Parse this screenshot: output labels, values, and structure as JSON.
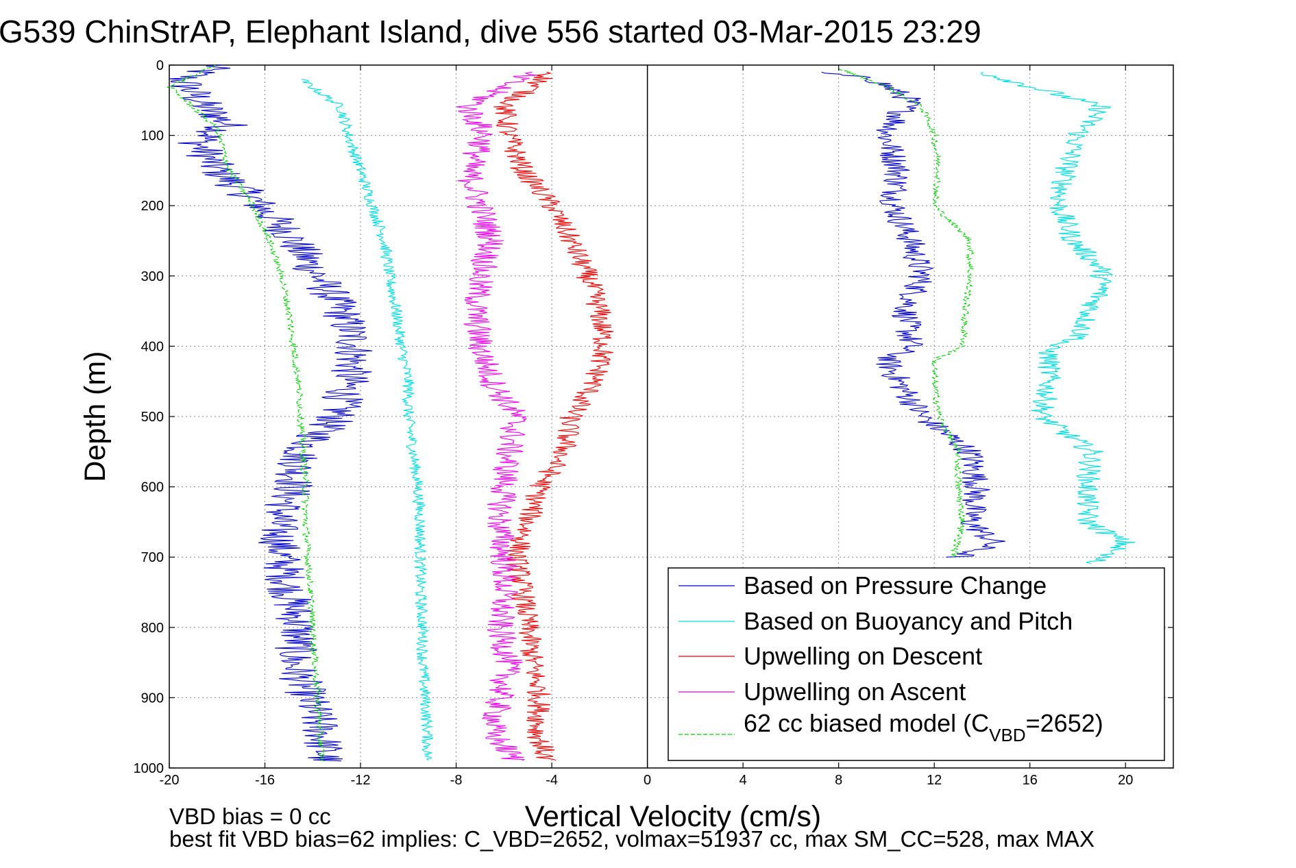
{
  "chart_data": {
    "type": "line",
    "title": "G539 ChinStrAP, Elephant Island, dive 556 started 03-Mar-2015 23:29",
    "xlabel": "Vertical Velocity (cm/s)",
    "ylabel": "Depth (m)",
    "xlim": [
      -20,
      22
    ],
    "ylim": [
      0,
      1000
    ],
    "y_reversed": true,
    "grid": true,
    "x_ticks": [
      -20,
      -16,
      -12,
      -8,
      -4,
      0,
      4,
      8,
      12,
      16,
      20
    ],
    "y_ticks": [
      0,
      100,
      200,
      300,
      400,
      500,
      600,
      700,
      800,
      900,
      1000
    ],
    "x_tick_labels": [
      "-20",
      "-16",
      "-12",
      "-8",
      "-4",
      "0",
      "4",
      "8",
      "12",
      "16",
      "20"
    ],
    "y_tick_labels": [
      "0",
      "100",
      "200",
      "300",
      "400",
      "500",
      "600",
      "700",
      "800",
      "900",
      "1000"
    ],
    "legend_position": "bottom-right",
    "legend": [
      "Based on Pressure Change",
      "Based on Buoyancy and Pitch",
      "Upwelling on Descent",
      "Upwelling on Ascent"
    ],
    "legend_model": {
      "prefix": "62 cc biased model (C",
      "subscript": "VBD",
      "suffix": "=2652)"
    },
    "footer_line1": "VBD bias = 0 cc",
    "footer_line2": "best fit VBD bias=62 implies: C_VBD=2652, volmax=51937 cc, max SM_CC=528, max MAX",
    "series": [
      {
        "color": "#0000cc",
        "style": "solid",
        "noise": 0.9,
        "points": [
          [
            -18,
            0
          ],
          [
            -19.5,
            20
          ],
          [
            -18.5,
            60
          ],
          [
            -17.5,
            85
          ],
          [
            -18.8,
            110
          ],
          [
            -18,
            150
          ],
          [
            -16.5,
            190
          ],
          [
            -15,
            240
          ],
          [
            -13.8,
            300
          ],
          [
            -12.8,
            350
          ],
          [
            -12.2,
            400
          ],
          [
            -12.5,
            450
          ],
          [
            -13,
            500
          ],
          [
            -14.5,
            550
          ],
          [
            -14.8,
            600
          ],
          [
            -15.5,
            650
          ],
          [
            -15.3,
            700
          ],
          [
            -15,
            750
          ],
          [
            -14.6,
            800
          ],
          [
            -14.8,
            850
          ],
          [
            -14.2,
            900
          ],
          [
            -13.6,
            950
          ],
          [
            -13.5,
            990
          ]
        ]
      },
      {
        "color": "#0000cc",
        "style": "solid",
        "noise": 0.6,
        "points": [
          [
            7,
            10
          ],
          [
            9.5,
            20
          ],
          [
            11,
            50
          ],
          [
            10,
            100
          ],
          [
            10.5,
            150
          ],
          [
            10.3,
            200
          ],
          [
            11,
            250
          ],
          [
            11.5,
            300
          ],
          [
            10.8,
            350
          ],
          [
            11,
            400
          ],
          [
            10,
            420
          ],
          [
            10.5,
            450
          ],
          [
            11.5,
            500
          ],
          [
            13.5,
            550
          ],
          [
            13.8,
            600
          ],
          [
            13.5,
            650
          ],
          [
            14.5,
            680
          ],
          [
            13,
            700
          ]
        ]
      },
      {
        "color": "#00dddd",
        "style": "solid",
        "noise": 0.25,
        "points": [
          [
            -14.5,
            20
          ],
          [
            -12.8,
            60
          ],
          [
            -12.5,
            100
          ],
          [
            -12,
            150
          ],
          [
            -11.5,
            200
          ],
          [
            -11,
            250
          ],
          [
            -10.8,
            300
          ],
          [
            -10.5,
            350
          ],
          [
            -10.3,
            400
          ],
          [
            -10,
            450
          ],
          [
            -10,
            500
          ],
          [
            -9.8,
            550
          ],
          [
            -9.6,
            600
          ],
          [
            -9.5,
            650
          ],
          [
            -9.5,
            700
          ],
          [
            -9.5,
            750
          ],
          [
            -9.4,
            800
          ],
          [
            -9.4,
            850
          ],
          [
            -9.3,
            900
          ],
          [
            -9.2,
            950
          ],
          [
            -9.2,
            990
          ]
        ]
      },
      {
        "color": "#00dddd",
        "style": "solid",
        "noise": 0.5,
        "points": [
          [
            14,
            10
          ],
          [
            16,
            30
          ],
          [
            19,
            60
          ],
          [
            18,
            100
          ],
          [
            17.5,
            150
          ],
          [
            17.2,
            200
          ],
          [
            17.8,
            250
          ],
          [
            19,
            290
          ],
          [
            19,
            320
          ],
          [
            18.5,
            350
          ],
          [
            18,
            390
          ],
          [
            16.8,
            400
          ],
          [
            16.8,
            450
          ],
          [
            16.5,
            500
          ],
          [
            18.6,
            550
          ],
          [
            18.4,
            600
          ],
          [
            18.4,
            650
          ],
          [
            20,
            680
          ],
          [
            18.5,
            710
          ]
        ]
      },
      {
        "color": "#ee0000",
        "style": "solid",
        "noise": 0.5,
        "points": [
          [
            -4,
            10
          ],
          [
            -6,
            60
          ],
          [
            -5.8,
            100
          ],
          [
            -5.2,
            150
          ],
          [
            -4,
            200
          ],
          [
            -3.2,
            250
          ],
          [
            -2.5,
            300
          ],
          [
            -2,
            350
          ],
          [
            -1.8,
            400
          ],
          [
            -2.2,
            450
          ],
          [
            -3.2,
            500
          ],
          [
            -3.5,
            550
          ],
          [
            -4.5,
            600
          ],
          [
            -5,
            650
          ],
          [
            -5.5,
            700
          ],
          [
            -5.2,
            750
          ],
          [
            -5,
            800
          ],
          [
            -4.8,
            850
          ],
          [
            -4.5,
            900
          ],
          [
            -4.6,
            950
          ],
          [
            -4.2,
            990
          ]
        ]
      },
      {
        "color": "#ee00ee",
        "style": "solid",
        "noise": 0.6,
        "points": [
          [
            -5,
            10
          ],
          [
            -7.5,
            60
          ],
          [
            -6.8,
            100
          ],
          [
            -7.5,
            150
          ],
          [
            -7,
            200
          ],
          [
            -6.5,
            250
          ],
          [
            -7,
            300
          ],
          [
            -7.2,
            350
          ],
          [
            -7,
            400
          ],
          [
            -6.5,
            450
          ],
          [
            -5.5,
            500
          ],
          [
            -5.8,
            550
          ],
          [
            -6,
            600
          ],
          [
            -6.2,
            650
          ],
          [
            -6,
            700
          ],
          [
            -6,
            750
          ],
          [
            -6.2,
            800
          ],
          [
            -5.8,
            850
          ],
          [
            -6.2,
            900
          ],
          [
            -6.5,
            950
          ],
          [
            -5.5,
            990
          ]
        ]
      },
      {
        "color": "#00cc00",
        "style": "dashed",
        "noise": 0.15,
        "points": [
          [
            -18,
            0
          ],
          [
            -20,
            30
          ],
          [
            -19,
            60
          ],
          [
            -18,
            90
          ],
          [
            -17.5,
            150
          ],
          [
            -16.5,
            200
          ],
          [
            -15.8,
            250
          ],
          [
            -15.3,
            300
          ],
          [
            -15,
            350
          ],
          [
            -14.8,
            400
          ],
          [
            -14.6,
            450
          ],
          [
            -14.5,
            500
          ],
          [
            -14.4,
            550
          ],
          [
            -14.3,
            600
          ],
          [
            -14.3,
            650
          ],
          [
            -14.2,
            700
          ],
          [
            -14.1,
            750
          ],
          [
            -14,
            800
          ],
          [
            -13.9,
            850
          ],
          [
            -13.8,
            900
          ],
          [
            -13.7,
            950
          ],
          [
            -13.6,
            990
          ]
        ]
      },
      {
        "color": "#00cc00",
        "style": "dashed",
        "noise": 0.15,
        "points": [
          [
            8,
            5
          ],
          [
            10,
            30
          ],
          [
            11.5,
            60
          ],
          [
            12,
            100
          ],
          [
            12.2,
            150
          ],
          [
            12,
            200
          ],
          [
            13.5,
            250
          ],
          [
            13.5,
            300
          ],
          [
            13.3,
            350
          ],
          [
            13.2,
            400
          ],
          [
            12,
            420
          ],
          [
            12,
            450
          ],
          [
            12.2,
            500
          ],
          [
            13,
            550
          ],
          [
            13,
            600
          ],
          [
            13.2,
            650
          ],
          [
            12.8,
            700
          ]
        ]
      }
    ]
  }
}
